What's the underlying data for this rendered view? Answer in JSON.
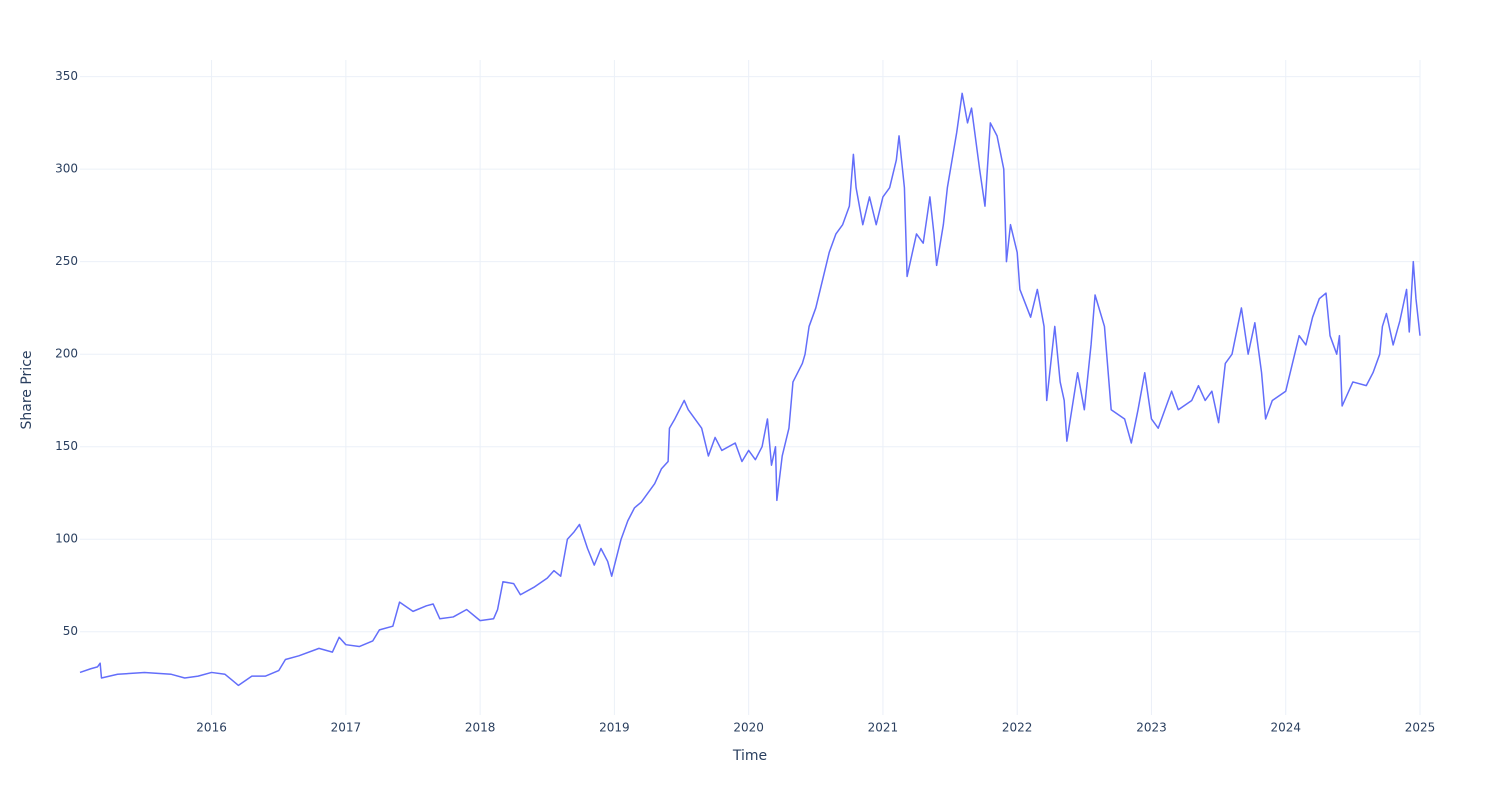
{
  "chart_data": {
    "type": "line",
    "x_label": "Time",
    "y_label": "Share Price",
    "color": "#636efa",
    "grid": true,
    "xlim": [
      2015.02,
      2025.0
    ],
    "xticks": [
      2016,
      2017,
      2018,
      2019,
      2020,
      2021,
      2022,
      2023,
      2024,
      2025
    ],
    "ylim": [
      5,
      359
    ],
    "yticks": [
      50,
      100,
      150,
      200,
      250,
      300,
      350
    ],
    "x": [
      2015.02,
      2015.1,
      2015.15,
      2015.17,
      2015.18,
      2015.3,
      2015.5,
      2015.7,
      2015.8,
      2015.9,
      2016.0,
      2016.1,
      2016.15,
      2016.2,
      2016.3,
      2016.4,
      2016.5,
      2016.55,
      2016.65,
      2016.8,
      2016.9,
      2016.95,
      2017.0,
      2017.1,
      2017.2,
      2017.25,
      2017.35,
      2017.4,
      2017.5,
      2017.6,
      2017.65,
      2017.7,
      2017.8,
      2017.9,
      2018.0,
      2018.1,
      2018.13,
      2018.17,
      2018.25,
      2018.3,
      2018.4,
      2018.5,
      2018.55,
      2018.6,
      2018.65,
      2018.7,
      2018.74,
      2018.8,
      2018.85,
      2018.9,
      2018.95,
      2018.98,
      2019.05,
      2019.1,
      2019.15,
      2019.2,
      2019.3,
      2019.35,
      2019.4,
      2019.41,
      2019.45,
      2019.52,
      2019.55,
      2019.65,
      2019.7,
      2019.75,
      2019.8,
      2019.9,
      2019.95,
      2020.0,
      2020.05,
      2020.1,
      2020.14,
      2020.17,
      2020.2,
      2020.21,
      2020.25,
      2020.3,
      2020.33,
      2020.4,
      2020.42,
      2020.45,
      2020.5,
      2020.55,
      2020.6,
      2020.65,
      2020.7,
      2020.75,
      2020.78,
      2020.8,
      2020.85,
      2020.9,
      2020.95,
      2021.0,
      2021.05,
      2021.1,
      2021.12,
      2021.16,
      2021.18,
      2021.25,
      2021.3,
      2021.35,
      2021.38,
      2021.4,
      2021.45,
      2021.48,
      2021.55,
      2021.59,
      2021.63,
      2021.66,
      2021.72,
      2021.76,
      2021.8,
      2021.85,
      2021.9,
      2021.92,
      2021.95,
      2022.0,
      2022.02,
      2022.1,
      2022.15,
      2022.2,
      2022.22,
      2022.28,
      2022.32,
      2022.35,
      2022.37,
      2022.45,
      2022.5,
      2022.55,
      2022.58,
      2022.65,
      2022.7,
      2022.8,
      2022.85,
      2022.9,
      2022.95,
      2023.0,
      2023.05,
      2023.1,
      2023.15,
      2023.2,
      2023.3,
      2023.35,
      2023.4,
      2023.45,
      2023.5,
      2023.55,
      2023.6,
      2023.67,
      2023.72,
      2023.77,
      2023.82,
      2023.85,
      2023.9,
      2024.0,
      2024.05,
      2024.1,
      2024.15,
      2024.2,
      2024.25,
      2024.3,
      2024.33,
      2024.38,
      2024.4,
      2024.42,
      2024.5,
      2024.6,
      2024.65,
      2024.7,
      2024.72,
      2024.75,
      2024.8,
      2024.85,
      2024.9,
      2024.92,
      2024.95,
      2024.97,
      2025.0
    ],
    "values": [
      28,
      30,
      31,
      33,
      25,
      27,
      28,
      27,
      25,
      26,
      28,
      27,
      24,
      21,
      26,
      26,
      29,
      35,
      37,
      41,
      39,
      47,
      43,
      42,
      45,
      51,
      53,
      66,
      61,
      64,
      65,
      57,
      58,
      62,
      56,
      57,
      62,
      77,
      76,
      70,
      74,
      79,
      83,
      80,
      100,
      104,
      108,
      95,
      86,
      95,
      88,
      80,
      100,
      110,
      117,
      120,
      130,
      138,
      142,
      160,
      165,
      175,
      170,
      160,
      145,
      155,
      148,
      152,
      142,
      148,
      143,
      150,
      165,
      140,
      150,
      121,
      145,
      160,
      185,
      195,
      200,
      215,
      225,
      240,
      255,
      265,
      270,
      280,
      308,
      290,
      270,
      285,
      270,
      285,
      290,
      305,
      318,
      290,
      242,
      265,
      260,
      285,
      265,
      248,
      270,
      290,
      320,
      341,
      325,
      333,
      300,
      280,
      325,
      318,
      300,
      250,
      270,
      255,
      235,
      220,
      235,
      215,
      175,
      215,
      185,
      175,
      153,
      190,
      170,
      205,
      232,
      215,
      170,
      165,
      152,
      170,
      190,
      165,
      160,
      170,
      180,
      170,
      175,
      183,
      175,
      180,
      163,
      195,
      200,
      225,
      200,
      217,
      190,
      165,
      175,
      180,
      195,
      210,
      205,
      220,
      230,
      233,
      210,
      200,
      210,
      172,
      185,
      183,
      190,
      200,
      215,
      222,
      205,
      218,
      235,
      212,
      250,
      230,
      210
    ]
  }
}
